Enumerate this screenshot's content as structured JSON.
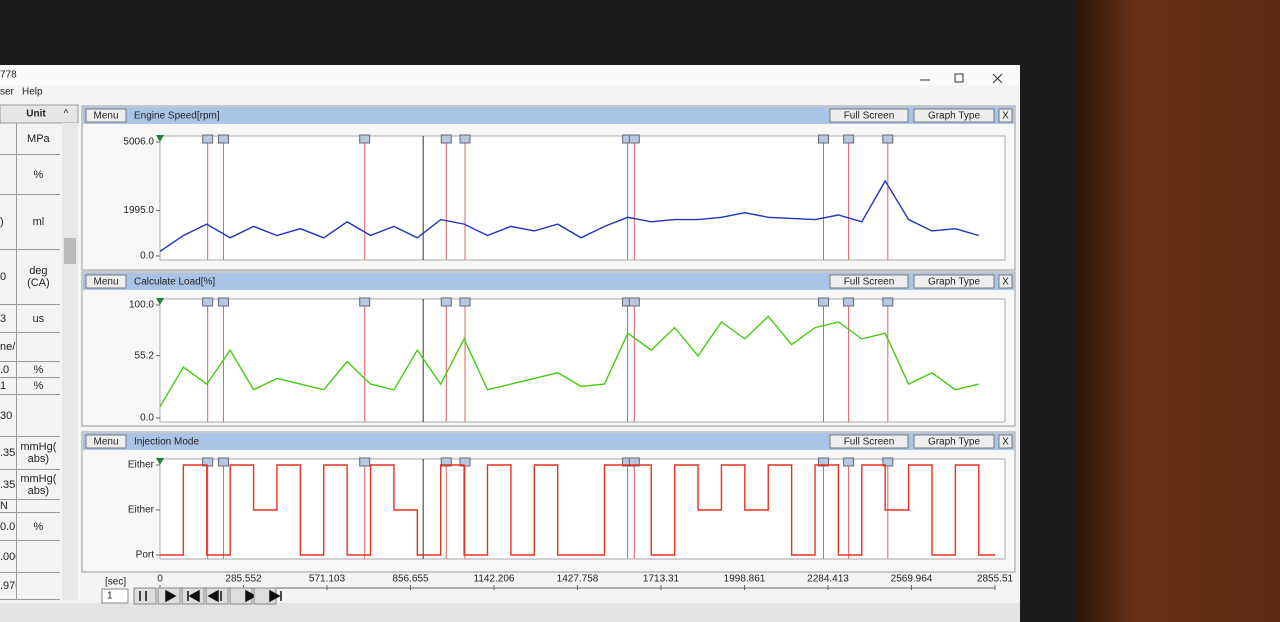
{
  "window": {
    "title": "778",
    "menu": [
      "ser",
      "Help"
    ]
  },
  "left_table": {
    "header": "Unit",
    "rows": [
      {
        "unit": "MPa"
      },
      {
        "unit": "%"
      },
      {
        "value": ")",
        "unit": "ml"
      },
      {
        "value": "0",
        "unit": "deg (CA)"
      },
      {
        "value": "3",
        "unit": "us"
      },
      {
        "value": "ne/ ol"
      },
      {
        "value": ".0",
        "unit": "%"
      },
      {
        "value": "1",
        "unit": "%"
      },
      {
        "value": "30"
      },
      {
        "value": ".355",
        "unit": "mmHg( abs)"
      },
      {
        "value": ".355",
        "unit": "mmHg( abs)"
      },
      {
        "value": "N"
      },
      {
        "value": "0.0",
        "unit": "%"
      },
      {
        "value": ".000"
      },
      {
        "value": ".970"
      }
    ]
  },
  "panel_controls": {
    "menu": "Menu",
    "full_screen": "Full Screen",
    "graph_type": "Graph Type",
    "close": "X"
  },
  "chart_data": [
    {
      "type": "line",
      "title": "Engine Speed[rpm]",
      "color": "#2233bb",
      "xlim": [
        0,
        2855.51
      ],
      "ylim": [
        0,
        5006
      ],
      "yticks": [
        {
          "value": 0,
          "label": "0.0"
        },
        {
          "value": 1995,
          "label": "1995.0"
        },
        {
          "value": 5006,
          "label": "5006.0"
        }
      ],
      "x": [
        0,
        80,
        160,
        240,
        320,
        400,
        480,
        560,
        640,
        720,
        800,
        880,
        960,
        1040,
        1120,
        1200,
        1280,
        1360,
        1440,
        1520,
        1600,
        1680,
        1760,
        1840,
        1920,
        2000,
        2080,
        2160,
        2240,
        2320,
        2400,
        2480,
        2560,
        2640,
        2720,
        2800
      ],
      "values": [
        200,
        900,
        1400,
        800,
        1300,
        900,
        1200,
        800,
        1500,
        900,
        1300,
        800,
        1600,
        1400,
        900,
        1300,
        1100,
        1400,
        800,
        1300,
        1700,
        1500,
        1600,
        1600,
        1700,
        1900,
        1700,
        1650,
        1600,
        1800,
        1500,
        3300,
        1600,
        1100,
        1200,
        900
      ],
      "events": [
        163,
        217,
        700,
        979,
        1043,
        1599,
        1622,
        2269,
        2355,
        2489
      ],
      "cursor": 900
    },
    {
      "type": "line",
      "title": "Calculate Load[%]",
      "color": "#44cc11",
      "xlim": [
        0,
        2855.51
      ],
      "ylim": [
        0,
        100
      ],
      "yticks": [
        {
          "value": 0,
          "label": "0.0"
        },
        55.2,
        {
          "value": 100,
          "label": "100.0"
        }
      ],
      "x": [
        0,
        80,
        160,
        240,
        320,
        400,
        480,
        560,
        640,
        720,
        800,
        880,
        960,
        1040,
        1120,
        1200,
        1280,
        1360,
        1440,
        1520,
        1600,
        1680,
        1760,
        1840,
        1920,
        2000,
        2080,
        2160,
        2240,
        2320,
        2400,
        2480,
        2560,
        2640,
        2720,
        2800
      ],
      "values": [
        10,
        45,
        30,
        60,
        25,
        35,
        30,
        25,
        50,
        30,
        25,
        60,
        30,
        70,
        25,
        30,
        35,
        40,
        28,
        30,
        75,
        60,
        80,
        55,
        85,
        70,
        90,
        65,
        80,
        85,
        70,
        75,
        30,
        40,
        25,
        30
      ],
      "events": [
        163,
        217,
        700,
        979,
        1043,
        1599,
        1622,
        2269,
        2355,
        2489
      ],
      "cursor": 900
    },
    {
      "type": "step",
      "title": "Injection Mode",
      "color": "#e83020",
      "xlim": [
        0,
        2855.51
      ],
      "ylim": [
        0,
        2
      ],
      "yticks": [
        {
          "value": 0,
          "label": "Port"
        },
        {
          "value": 1,
          "label": "Either"
        },
        {
          "value": 2,
          "label": "Either"
        }
      ],
      "x_label": "[sec]",
      "xticks": [
        0,
        285.552,
        571.103,
        856.655,
        1142.206,
        1427.758,
        1713.31,
        1998.861,
        2284.413,
        2569.964,
        2855.51
      ],
      "x": [
        0,
        80,
        160,
        240,
        320,
        400,
        480,
        560,
        640,
        720,
        800,
        880,
        960,
        1040,
        1120,
        1200,
        1280,
        1360,
        1440,
        1520,
        1600,
        1680,
        1760,
        1840,
        1920,
        2000,
        2080,
        2160,
        2240,
        2320,
        2400,
        2480,
        2560,
        2640,
        2720,
        2800
      ],
      "values": [
        0,
        2,
        0,
        2,
        1,
        2,
        0,
        2,
        0,
        2,
        1,
        0,
        2,
        0,
        2,
        0,
        2,
        0,
        0,
        2,
        2,
        0,
        2,
        1,
        2,
        1,
        2,
        0,
        2,
        0,
        2,
        1,
        2,
        0,
        2,
        0
      ],
      "events": [
        163,
        217,
        700,
        979,
        1043,
        1599,
        1622,
        2269,
        2355,
        2489
      ],
      "cursor": 900
    }
  ],
  "playback": {
    "step": "1"
  }
}
